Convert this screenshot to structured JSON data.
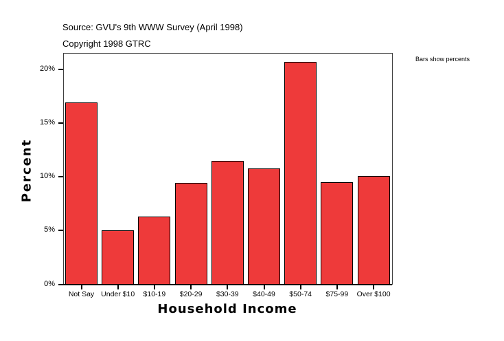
{
  "header": {
    "source": "Source: GVU's 9th WWW Survey (April 1998)",
    "copyright": "Copyright 1998 GTRC"
  },
  "note": "Bars show percents",
  "chart_data": {
    "type": "bar",
    "title": "",
    "xlabel": "Household Income",
    "ylabel": "Percent",
    "categories": [
      "Not Say",
      "Under $10",
      "$10-19",
      "$20-29",
      "$30-39",
      "$40-49",
      "$50-74",
      "$75-99",
      "Over $100"
    ],
    "values": [
      16.9,
      5.0,
      6.3,
      9.4,
      11.5,
      10.8,
      20.7,
      9.5,
      10.1
    ],
    "y_ticks": [
      "0%",
      "5%",
      "10%",
      "15%",
      "20%"
    ],
    "ylim": [
      0,
      21.5
    ],
    "grid": false,
    "legend": "none",
    "bar_color": "#ee3a3a",
    "annotation": "Bars show percents"
  }
}
